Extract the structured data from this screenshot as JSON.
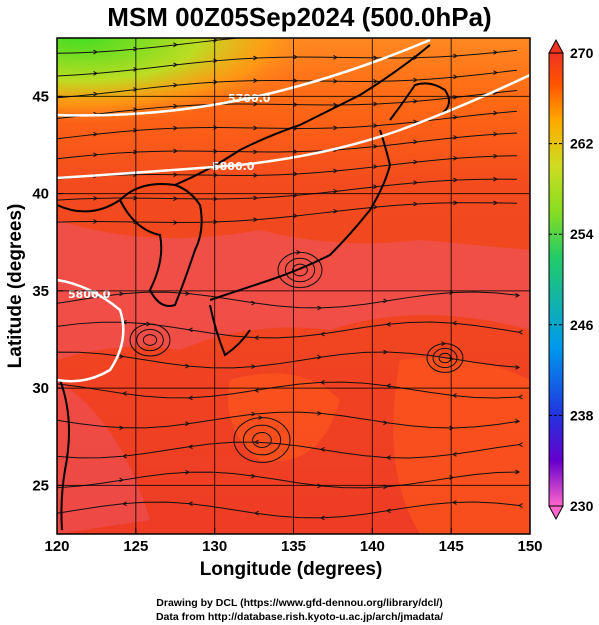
{
  "title": "MSM 00Z05Sep2024 (500.0hPa)",
  "map": {
    "xlabel": "Longitude (degrees)",
    "ylabel": "Latitude  (degrees)",
    "lon_range": [
      120,
      150
    ],
    "lat_range": [
      22.5,
      48
    ],
    "lon_ticks": [
      "120",
      "125",
      "130",
      "135",
      "140",
      "145",
      "150"
    ],
    "lat_ticks": [
      "25",
      "30",
      "35",
      "40",
      "45"
    ],
    "grid": true
  },
  "contours": [
    {
      "label": "5700.0"
    },
    {
      "label": "5800.0"
    },
    {
      "label": "5800.0"
    }
  ],
  "colorbar": {
    "ticks": [
      "270",
      "262",
      "254",
      "246",
      "238",
      "230"
    ],
    "min": 230,
    "max": 270,
    "colors": [
      "#ff66cc",
      "#6600cc",
      "#2233dd",
      "#0099ee",
      "#22cc66",
      "#88dd22",
      "#ccdd22",
      "#ffaa00",
      "#ff5500",
      "#ee3322"
    ]
  },
  "credits": {
    "line1": "Drawing by DCL (https://www.gfd-dennou.org/library/dcl/)",
    "line2": "Data from http://database.rish.kyoto-u.ac.jp/arch/jmadata/"
  }
}
